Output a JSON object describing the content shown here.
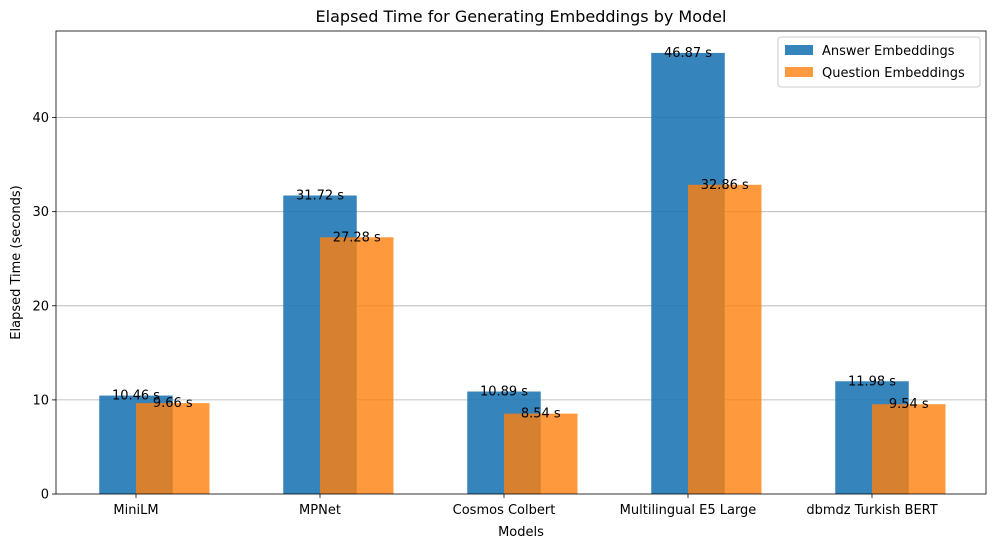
{
  "chart_data": {
    "type": "bar",
    "title": "Elapsed Time for Generating Embeddings by Model",
    "xlabel": "Models",
    "ylabel": "Elapsed Time (seconds)",
    "categories": [
      "MiniLM",
      "MPNet",
      "Cosmos Colbert",
      "Multilingual E5 Large",
      "dbmdz Turkish BERT"
    ],
    "series": [
      {
        "name": "Answer Embeddings",
        "values": [
          10.46,
          31.72,
          10.89,
          46.87,
          11.98
        ],
        "labels": [
          "10.46 s",
          "31.72 s",
          "10.89 s",
          "46.87 s",
          "11.98 s"
        ],
        "color": "#1f77b4",
        "opacity": 0.9
      },
      {
        "name": "Question Embeddings",
        "values": [
          9.66,
          27.28,
          8.54,
          32.86,
          9.54
        ],
        "labels": [
          "9.66 s",
          "27.28 s",
          "8.54 s",
          "32.86 s",
          "9.54 s"
        ],
        "color": "#ff7f0e",
        "opacity": 0.8
      }
    ],
    "ylim": [
      0,
      49.2
    ],
    "yticks": [
      0,
      10,
      20,
      30,
      40
    ],
    "grid": "y",
    "legend": "upper right"
  }
}
